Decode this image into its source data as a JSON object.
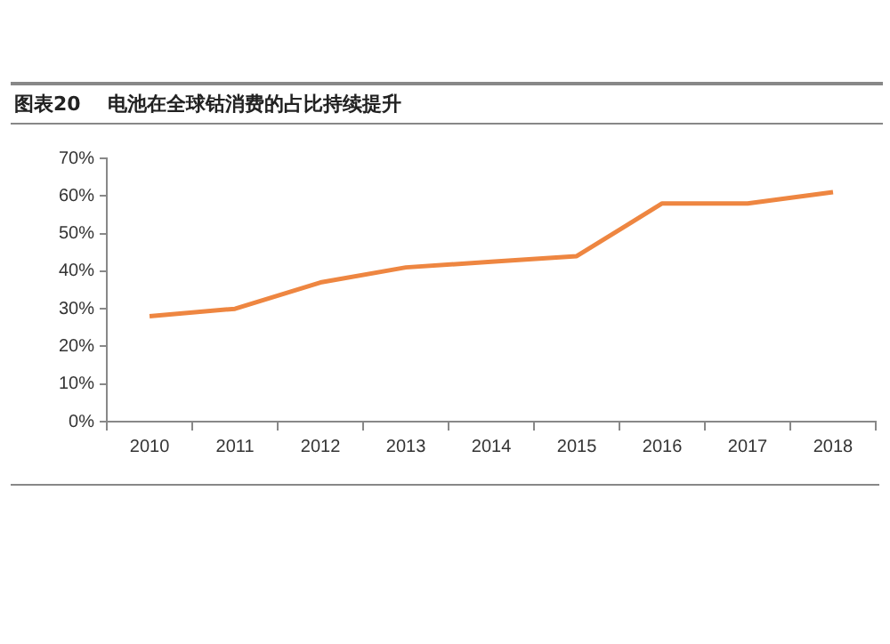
{
  "chart_data": {
    "type": "line",
    "title": "图表20    电池在全球钴消费的占比持续提升",
    "categories": [
      "2010",
      "2011",
      "2012",
      "2013",
      "2014",
      "2015",
      "2016",
      "2017",
      "2018"
    ],
    "series": [
      {
        "color": "#ee8641",
        "values": [
          28,
          30,
          37,
          41,
          42.5,
          44,
          58,
          58,
          61
        ]
      }
    ],
    "ylim": [
      0,
      70
    ],
    "yticks": [
      {
        "value": 0,
        "label": "0%"
      },
      {
        "value": 10,
        "label": "10%"
      },
      {
        "value": 20,
        "label": "20%"
      },
      {
        "value": 30,
        "label": "30%"
      },
      {
        "value": 40,
        "label": "40%"
      },
      {
        "value": 50,
        "label": "50%"
      },
      {
        "value": 60,
        "label": "60%"
      },
      {
        "value": 70,
        "label": "70%"
      }
    ],
    "grid": false,
    "legend": false,
    "marker": "none",
    "line_style": "solid"
  }
}
